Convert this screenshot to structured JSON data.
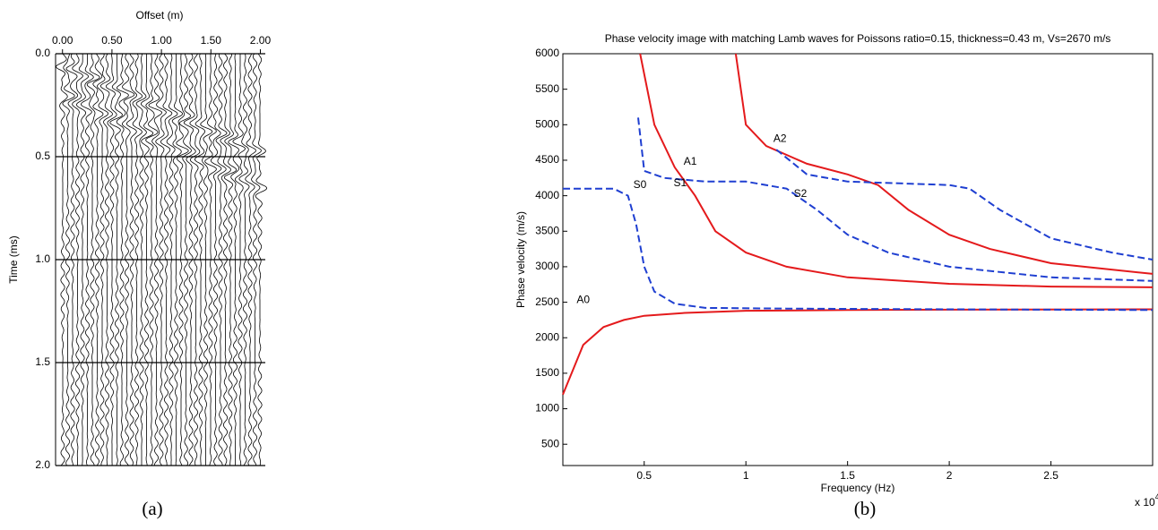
{
  "chart_data": [
    {
      "type": "wiggle",
      "xlabel": "Offset (m)",
      "ylabel": "Time (ms)",
      "caption": "(a)",
      "xlim": [
        -0.07,
        2.05
      ],
      "ylim": [
        0,
        2
      ],
      "xticks": [
        {
          "value": 0,
          "label": "0.00"
        },
        {
          "value": 0.5,
          "label": "0.50"
        },
        {
          "value": 1,
          "label": "1.00"
        },
        {
          "value": 1.5,
          "label": "1.50"
        },
        {
          "value": 2,
          "label": "2.00"
        }
      ],
      "yticks": [
        {
          "value": 0,
          "label": "0.0"
        },
        {
          "value": 0.5,
          "label": "0.5"
        },
        {
          "value": 1,
          "label": "1.0"
        },
        {
          "value": 1.5,
          "label": "1.5"
        },
        {
          "value": 2,
          "label": "2.0"
        }
      ],
      "grid": true,
      "color": "#000000"
    },
    {
      "type": "line",
      "title": "Phase velocity image with matching Lamb waves for Poissons ratio=0.15, thickness=0.43 m, Vs=2670 m/s",
      "xlabel": "Frequency (Hz)",
      "ylabel": "Phase velocity (m/s)",
      "caption": "(b)",
      "x_multiplier": {
        "text": "x 10",
        "exponent": "4"
      },
      "xlim": [
        1000,
        30000
      ],
      "ylim": [
        200,
        6000
      ],
      "xticks": [
        {
          "value": 5000,
          "label": "0.5"
        },
        {
          "value": 10000,
          "label": "1"
        },
        {
          "value": 15000,
          "label": "1.5"
        },
        {
          "value": 20000,
          "label": "2"
        },
        {
          "value": 25000,
          "label": "2.5"
        }
      ],
      "yticks": [
        500,
        1000,
        1500,
        2000,
        2500,
        3000,
        3500,
        4000,
        4500,
        5000,
        5500,
        6000
      ],
      "series": [
        {
          "name": "A0",
          "color": "#e41a1c",
          "linestyle": "solid",
          "x": [
            1000,
            2000,
            3000,
            4000,
            5000,
            7000,
            10000,
            15000,
            20000,
            30000
          ],
          "values": [
            1200,
            1900,
            2150,
            2250,
            2310,
            2350,
            2380,
            2390,
            2395,
            2400
          ]
        },
        {
          "name": "A1",
          "color": "#e41a1c",
          "linestyle": "solid",
          "x": [
            4800,
            5500,
            6500,
            7500,
            8500,
            10000,
            12000,
            15000,
            20000,
            25000,
            30000
          ],
          "values": [
            6000,
            5000,
            4400,
            4000,
            3500,
            3200,
            3000,
            2850,
            2760,
            2720,
            2710
          ]
        },
        {
          "name": "A2",
          "color": "#e41a1c",
          "linestyle": "solid",
          "x": [
            9500,
            10000,
            11000,
            13000,
            15000,
            16500,
            18000,
            20000,
            22000,
            25000,
            30000
          ],
          "values": [
            6000,
            5000,
            4700,
            4450,
            4300,
            4150,
            3800,
            3450,
            3250,
            3050,
            2900
          ]
        },
        {
          "name": "S0",
          "color": "#1f3fd1",
          "linestyle": "dashed",
          "x": [
            1000,
            3500,
            4200,
            4600,
            5000,
            5500,
            6500,
            8000,
            12000,
            20000,
            30000
          ],
          "values": [
            4100,
            4100,
            4000,
            3600,
            3000,
            2650,
            2480,
            2420,
            2410,
            2400,
            2390
          ]
        },
        {
          "name": "S1",
          "color": "#1f3fd1",
          "linestyle": "dashed",
          "x": [
            4700,
            5000,
            6000,
            8000,
            10000,
            12000,
            13500,
            15000,
            17000,
            20000,
            25000,
            30000
          ],
          "values": [
            5100,
            4350,
            4250,
            4200,
            4200,
            4100,
            3800,
            3450,
            3200,
            3000,
            2850,
            2800
          ]
        },
        {
          "name": "S2",
          "color": "#1f3fd1",
          "linestyle": "dashed",
          "x": [
            11500,
            13000,
            15000,
            20000,
            21000,
            22500,
            25000,
            28000,
            30000
          ],
          "values": [
            4650,
            4300,
            4200,
            4150,
            4100,
            3800,
            3400,
            3200,
            3100
          ]
        }
      ]
    }
  ]
}
